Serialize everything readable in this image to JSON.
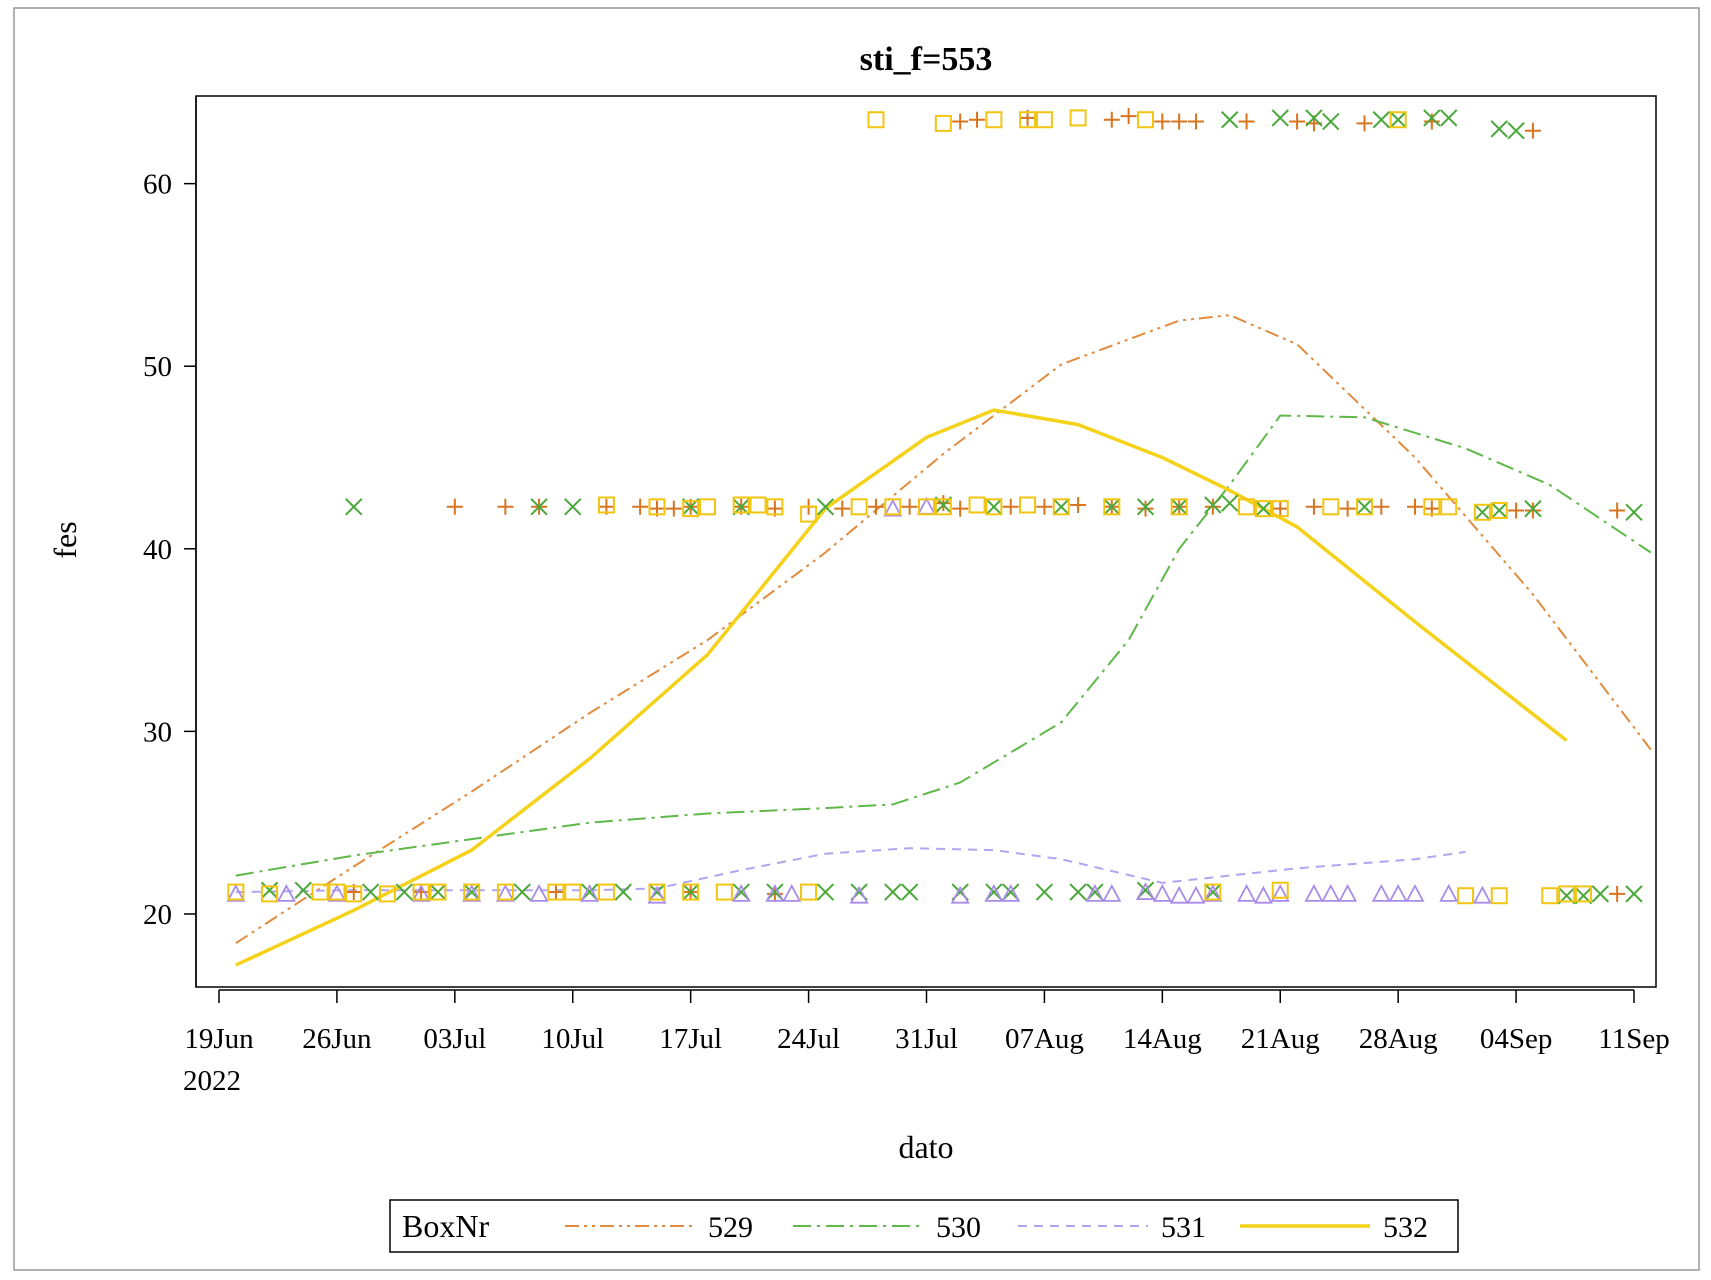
{
  "chart_data": {
    "type": "line",
    "title": "sti_f=553",
    "xlabel": "dato",
    "ylabel": "fes",
    "x_ticks": [
      "19Jun",
      "26Jun",
      "03Jul",
      "10Jul",
      "17Jul",
      "24Jul",
      "31Jul",
      "07Aug",
      "14Aug",
      "21Aug",
      "28Aug",
      "04Sep",
      "11Sep"
    ],
    "x_year_label": "2022",
    "x_range": [
      "2022-06-19",
      "2022-09-11"
    ],
    "y_ticks": [
      20,
      30,
      40,
      50,
      60
    ],
    "ylim": [
      16,
      64.8
    ],
    "grid": false,
    "legend": {
      "title": "BoxNr",
      "position": "bottom",
      "entries": [
        "529",
        "530",
        "531",
        "532"
      ]
    },
    "series": [
      {
        "name": "529",
        "color": "#e08b3d",
        "line_style": "dash-dot-dot",
        "marker": "plus",
        "marker_color": "#d9741f",
        "fit": [
          [
            "2022-06-20",
            18.4
          ],
          [
            "2022-06-27",
            22.6
          ],
          [
            "2022-07-04",
            26.7
          ],
          [
            "2022-07-11",
            31.0
          ],
          [
            "2022-07-18",
            35.0
          ],
          [
            "2022-07-25",
            39.8
          ],
          [
            "2022-08-01",
            45.2
          ],
          [
            "2022-08-08",
            50.1
          ],
          [
            "2022-08-15",
            52.5
          ],
          [
            "2022-08-18",
            52.8
          ],
          [
            "2022-08-22",
            51.2
          ],
          [
            "2022-08-29",
            45.0
          ],
          [
            "2022-09-05",
            37.5
          ],
          [
            "2022-09-12",
            29.0
          ]
        ],
        "points": [
          [
            "2022-07-03",
            42.3
          ],
          [
            "2022-07-06",
            42.3
          ],
          [
            "2022-07-08",
            42.3
          ],
          [
            "2022-07-12",
            42.3
          ],
          [
            "2022-07-14",
            42.3
          ],
          [
            "2022-07-15",
            42.2
          ],
          [
            "2022-07-16",
            42.2
          ],
          [
            "2022-07-17",
            42.3
          ],
          [
            "2022-07-20",
            42.3
          ],
          [
            "2022-07-22",
            42.2
          ],
          [
            "2022-07-24",
            42.3
          ],
          [
            "2022-07-26",
            42.2
          ],
          [
            "2022-07-28",
            42.3
          ],
          [
            "2022-07-30",
            42.3
          ],
          [
            "2022-08-01",
            42.5
          ],
          [
            "2022-08-02",
            42.2
          ],
          [
            "2022-08-05",
            42.3
          ],
          [
            "2022-08-07",
            42.3
          ],
          [
            "2022-08-09",
            42.4
          ],
          [
            "2022-08-11",
            42.3
          ],
          [
            "2022-08-13",
            42.2
          ],
          [
            "2022-08-15",
            42.3
          ],
          [
            "2022-08-17",
            42.3
          ],
          [
            "2022-08-21",
            42.2
          ],
          [
            "2022-08-23",
            42.3
          ],
          [
            "2022-08-25",
            42.2
          ],
          [
            "2022-08-27",
            42.3
          ],
          [
            "2022-08-29",
            42.3
          ],
          [
            "2022-08-30",
            42.2
          ],
          [
            "2022-09-04",
            42.1
          ],
          [
            "2022-09-05",
            42.1
          ],
          [
            "2022-09-10",
            42.1
          ],
          [
            "2022-08-02",
            63.4
          ],
          [
            "2022-08-03",
            63.5
          ],
          [
            "2022-08-06",
            63.6
          ],
          [
            "2022-08-11",
            63.5
          ],
          [
            "2022-08-12",
            63.7
          ],
          [
            "2022-08-14",
            63.4
          ],
          [
            "2022-08-15",
            63.4
          ],
          [
            "2022-08-16",
            63.4
          ],
          [
            "2022-08-19",
            63.4
          ],
          [
            "2022-08-22",
            63.4
          ],
          [
            "2022-08-23",
            63.3
          ],
          [
            "2022-08-26",
            63.3
          ],
          [
            "2022-08-30",
            63.4
          ],
          [
            "2022-09-05",
            62.9
          ],
          [
            "2022-06-27",
            21.2
          ],
          [
            "2022-07-01",
            21.2
          ],
          [
            "2022-07-09",
            21.2
          ],
          [
            "2022-07-17",
            21.2
          ],
          [
            "2022-07-22",
            21.1
          ],
          [
            "2022-09-10",
            21.1
          ]
        ]
      },
      {
        "name": "530",
        "color": "#5fb84a",
        "line_style": "dash-dot",
        "marker": "x",
        "marker_color": "#4aa83a",
        "fit": [
          [
            "2022-06-20",
            22.1
          ],
          [
            "2022-06-27",
            23.2
          ],
          [
            "2022-07-04",
            24.1
          ],
          [
            "2022-07-11",
            25.0
          ],
          [
            "2022-07-18",
            25.5
          ],
          [
            "2022-07-25",
            25.8
          ],
          [
            "2022-07-29",
            26.0
          ],
          [
            "2022-08-02",
            27.2
          ],
          [
            "2022-08-08",
            30.5
          ],
          [
            "2022-08-12",
            35.0
          ],
          [
            "2022-08-15",
            40.0
          ],
          [
            "2022-08-18",
            43.5
          ],
          [
            "2022-08-21",
            47.3
          ],
          [
            "2022-08-26",
            47.2
          ],
          [
            "2022-09-01",
            45.5
          ],
          [
            "2022-09-06",
            43.5
          ],
          [
            "2022-09-12",
            39.8
          ]
        ],
        "points": [
          [
            "2022-06-27",
            42.3
          ],
          [
            "2022-07-08",
            42.3
          ],
          [
            "2022-07-10",
            42.3
          ],
          [
            "2022-07-17",
            42.3
          ],
          [
            "2022-07-20",
            42.3
          ],
          [
            "2022-07-25",
            42.3
          ],
          [
            "2022-08-01",
            42.4
          ],
          [
            "2022-08-04",
            42.3
          ],
          [
            "2022-08-08",
            42.3
          ],
          [
            "2022-08-11",
            42.3
          ],
          [
            "2022-08-13",
            42.3
          ],
          [
            "2022-08-15",
            42.3
          ],
          [
            "2022-08-17",
            42.4
          ],
          [
            "2022-08-18",
            42.5
          ],
          [
            "2022-08-20",
            42.2
          ],
          [
            "2022-08-26",
            42.3
          ],
          [
            "2022-09-02",
            42.0
          ],
          [
            "2022-09-03",
            42.1
          ],
          [
            "2022-09-05",
            42.2
          ],
          [
            "2022-09-11",
            42.0
          ],
          [
            "2022-08-18",
            63.5
          ],
          [
            "2022-08-21",
            63.6
          ],
          [
            "2022-08-23",
            63.6
          ],
          [
            "2022-08-24",
            63.4
          ],
          [
            "2022-08-27",
            63.5
          ],
          [
            "2022-08-28",
            63.5
          ],
          [
            "2022-08-30",
            63.6
          ],
          [
            "2022-08-31",
            63.6
          ],
          [
            "2022-09-03",
            63.0
          ],
          [
            "2022-09-04",
            62.9
          ],
          [
            "2022-06-22",
            21.3
          ],
          [
            "2022-06-24",
            21.3
          ],
          [
            "2022-06-28",
            21.2
          ],
          [
            "2022-06-30",
            21.2
          ],
          [
            "2022-07-02",
            21.2
          ],
          [
            "2022-07-04",
            21.2
          ],
          [
            "2022-07-07",
            21.2
          ],
          [
            "2022-07-11",
            21.2
          ],
          [
            "2022-07-13",
            21.2
          ],
          [
            "2022-07-15",
            21.2
          ],
          [
            "2022-07-17",
            21.2
          ],
          [
            "2022-07-20",
            21.2
          ],
          [
            "2022-07-22",
            21.2
          ],
          [
            "2022-07-25",
            21.2
          ],
          [
            "2022-07-27",
            21.2
          ],
          [
            "2022-07-29",
            21.2
          ],
          [
            "2022-07-30",
            21.2
          ],
          [
            "2022-08-02",
            21.2
          ],
          [
            "2022-08-04",
            21.2
          ],
          [
            "2022-08-05",
            21.2
          ],
          [
            "2022-08-07",
            21.2
          ],
          [
            "2022-08-09",
            21.2
          ],
          [
            "2022-08-10",
            21.2
          ],
          [
            "2022-08-13",
            21.3
          ],
          [
            "2022-08-17",
            21.2
          ],
          [
            "2022-09-07",
            21.0
          ],
          [
            "2022-09-08",
            21.0
          ],
          [
            "2022-09-09",
            21.1
          ],
          [
            "2022-09-11",
            21.1
          ]
        ]
      },
      {
        "name": "531",
        "color": "#b3a3f0",
        "line_style": "dash",
        "marker": "triangle",
        "marker_color": "#a98bea",
        "fit": [
          [
            "2022-06-20",
            21.2
          ],
          [
            "2022-06-27",
            21.3
          ],
          [
            "2022-07-04",
            21.3
          ],
          [
            "2022-07-11",
            21.3
          ],
          [
            "2022-07-15",
            21.4
          ],
          [
            "2022-07-20",
            22.4
          ],
          [
            "2022-07-25",
            23.3
          ],
          [
            "2022-07-30",
            23.6
          ],
          [
            "2022-08-04",
            23.5
          ],
          [
            "2022-08-08",
            23.0
          ],
          [
            "2022-08-14",
            21.7
          ],
          [
            "2022-08-18",
            22.1
          ],
          [
            "2022-08-22",
            22.5
          ],
          [
            "2022-08-29",
            23.0
          ],
          [
            "2022-09-01",
            23.4
          ]
        ],
        "points": [
          [
            "2022-06-20",
            21.1
          ],
          [
            "2022-06-23",
            21.1
          ],
          [
            "2022-06-26",
            21.1
          ],
          [
            "2022-07-01",
            21.1
          ],
          [
            "2022-07-04",
            21.1
          ],
          [
            "2022-07-06",
            21.1
          ],
          [
            "2022-07-08",
            21.1
          ],
          [
            "2022-07-11",
            21.1
          ],
          [
            "2022-07-15",
            21.0
          ],
          [
            "2022-07-20",
            21.1
          ],
          [
            "2022-07-22",
            21.1
          ],
          [
            "2022-07-23",
            21.1
          ],
          [
            "2022-07-27",
            21.0
          ],
          [
            "2022-07-29",
            42.2
          ],
          [
            "2022-07-31",
            42.3
          ],
          [
            "2022-08-02",
            21.0
          ],
          [
            "2022-08-04",
            21.1
          ],
          [
            "2022-08-05",
            21.1
          ],
          [
            "2022-08-10",
            21.1
          ],
          [
            "2022-08-11",
            21.1
          ],
          [
            "2022-08-13",
            21.2
          ],
          [
            "2022-08-14",
            21.1
          ],
          [
            "2022-08-15",
            21.0
          ],
          [
            "2022-08-16",
            21.0
          ],
          [
            "2022-08-17",
            21.1
          ],
          [
            "2022-08-19",
            21.1
          ],
          [
            "2022-08-20",
            21.0
          ],
          [
            "2022-08-21",
            21.1
          ],
          [
            "2022-08-23",
            21.1
          ],
          [
            "2022-08-24",
            21.1
          ],
          [
            "2022-08-25",
            21.1
          ],
          [
            "2022-08-27",
            21.1
          ],
          [
            "2022-08-28",
            21.1
          ],
          [
            "2022-08-29",
            21.1
          ],
          [
            "2022-08-31",
            21.1
          ],
          [
            "2022-09-02",
            21.0
          ]
        ]
      },
      {
        "name": "532",
        "color": "#f5d21a",
        "line_style": "solid",
        "marker": "square",
        "marker_color": "#f2c511",
        "fit": [
          [
            "2022-06-20",
            17.2
          ],
          [
            "2022-06-27",
            20.2
          ],
          [
            "2022-07-04",
            23.5
          ],
          [
            "2022-07-11",
            28.5
          ],
          [
            "2022-07-18",
            34.2
          ],
          [
            "2022-07-25",
            42.2
          ],
          [
            "2022-07-31",
            46.1
          ],
          [
            "2022-08-04",
            47.6
          ],
          [
            "2022-08-09",
            46.8
          ],
          [
            "2022-08-14",
            45.0
          ],
          [
            "2022-08-18",
            43.2
          ],
          [
            "2022-08-22",
            41.2
          ],
          [
            "2022-08-29",
            36.0
          ],
          [
            "2022-09-07",
            29.5
          ]
        ],
        "points": [
          [
            "2022-07-12",
            42.4
          ],
          [
            "2022-07-15",
            42.3
          ],
          [
            "2022-07-17",
            42.2
          ],
          [
            "2022-07-18",
            42.3
          ],
          [
            "2022-07-20",
            42.4
          ],
          [
            "2022-07-21",
            42.4
          ],
          [
            "2022-07-22",
            42.3
          ],
          [
            "2022-07-24",
            41.9
          ],
          [
            "2022-07-27",
            42.3
          ],
          [
            "2022-07-29",
            42.3
          ],
          [
            "2022-07-31",
            42.3
          ],
          [
            "2022-08-01",
            42.3
          ],
          [
            "2022-08-03",
            42.4
          ],
          [
            "2022-08-04",
            42.3
          ],
          [
            "2022-08-06",
            42.4
          ],
          [
            "2022-08-08",
            42.3
          ],
          [
            "2022-08-11",
            42.3
          ],
          [
            "2022-08-15",
            42.3
          ],
          [
            "2022-08-19",
            42.3
          ],
          [
            "2022-08-20",
            42.2
          ],
          [
            "2022-08-21",
            42.2
          ],
          [
            "2022-08-24",
            42.3
          ],
          [
            "2022-08-26",
            42.3
          ],
          [
            "2022-08-30",
            42.3
          ],
          [
            "2022-08-31",
            42.3
          ],
          [
            "2022-09-02",
            42.0
          ],
          [
            "2022-09-03",
            42.1
          ],
          [
            "2022-07-28",
            63.5
          ],
          [
            "2022-08-01",
            63.3
          ],
          [
            "2022-08-04",
            63.5
          ],
          [
            "2022-08-06",
            63.5
          ],
          [
            "2022-08-07",
            63.5
          ],
          [
            "2022-08-09",
            63.6
          ],
          [
            "2022-08-13",
            63.5
          ],
          [
            "2022-08-28",
            63.5
          ],
          [
            "2022-06-20",
            21.2
          ],
          [
            "2022-06-22",
            21.1
          ],
          [
            "2022-06-25",
            21.2
          ],
          [
            "2022-06-26",
            21.2
          ],
          [
            "2022-06-27",
            21.1
          ],
          [
            "2022-06-29",
            21.1
          ],
          [
            "2022-07-01",
            21.2
          ],
          [
            "2022-07-02",
            21.2
          ],
          [
            "2022-07-04",
            21.2
          ],
          [
            "2022-07-06",
            21.2
          ],
          [
            "2022-07-09",
            21.2
          ],
          [
            "2022-07-10",
            21.2
          ],
          [
            "2022-07-12",
            21.2
          ],
          [
            "2022-07-15",
            21.2
          ],
          [
            "2022-07-17",
            21.2
          ],
          [
            "2022-07-19",
            21.2
          ],
          [
            "2022-07-24",
            21.2
          ],
          [
            "2022-08-17",
            21.2
          ],
          [
            "2022-08-21",
            21.3
          ],
          [
            "2022-09-01",
            21.0
          ],
          [
            "2022-09-03",
            21.0
          ],
          [
            "2022-09-06",
            21.0
          ],
          [
            "2022-09-07",
            21.1
          ],
          [
            "2022-09-08",
            21.1
          ]
        ]
      }
    ]
  }
}
